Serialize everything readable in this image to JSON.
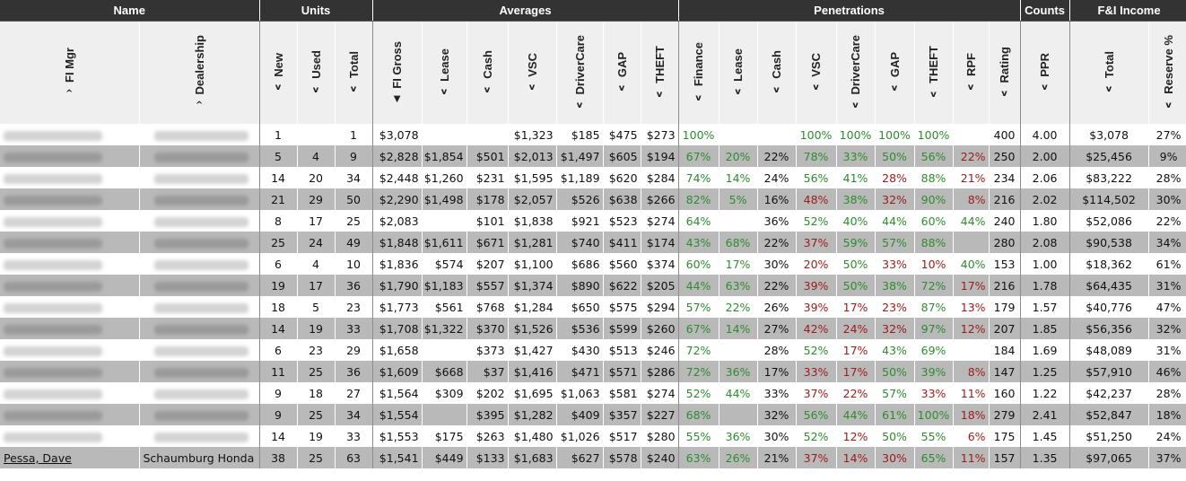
{
  "groups": {
    "name": "Name",
    "units": "Units",
    "averages": "Averages",
    "penetrations": "Penetrations",
    "counts": "Counts",
    "fi_income": "F&I Income"
  },
  "columns": {
    "fi_mgr": "FI Mgr",
    "dealership": "Dealership",
    "new": "New",
    "used": "Used",
    "total_units": "Total",
    "fi_gross": "FI Gross",
    "lease": "Lease",
    "cash": "Cash",
    "vsc": "VSC",
    "drivercare": "DriverCare",
    "gap": "GAP",
    "theft": "THEFT",
    "p_finance": "Finance",
    "p_lease": "Lease",
    "p_cash": "Cash",
    "p_vsc": "VSC",
    "p_drivercare": "DriverCare",
    "p_gap": "GAP",
    "p_theft": "THEFT",
    "p_rpf": "RPF",
    "p_rating": "Rating",
    "ppr": "PPR",
    "total_income": "Total",
    "reserve": "Reserve %"
  },
  "arrows": {
    "asc": "^",
    "desc": "v",
    "active": "▼"
  },
  "colors": {
    "good": "#2e8b2e",
    "bad": "#9b1a1a",
    "header_bg": "#333333",
    "row_alt": "#b9b9b9"
  },
  "last_row_partial": {
    "fi_mgr": "Pessa, Dave",
    "dealership": "Schaumburg Honda"
  },
  "rows": [
    {
      "new": "1",
      "used": "",
      "total": "1",
      "fi_gross": "$3,078",
      "lease": "",
      "cash": "",
      "vsc": "$1,323",
      "dc": "$185",
      "gap": "$475",
      "theft": "$273",
      "pf": "100%",
      "pl": "",
      "pc": "",
      "pv": "100%",
      "pd": "100%",
      "pg": "100%",
      "pt": "100%",
      "pr": "",
      "rating": "400",
      "ppr": "4.00",
      "tot": "$3,078",
      "res": "27%"
    },
    {
      "new": "5",
      "used": "4",
      "total": "9",
      "fi_gross": "$2,828",
      "lease": "$1,854",
      "cash": "$501",
      "vsc": "$2,013",
      "dc": "$1,497",
      "gap": "$605",
      "theft": "$194",
      "pf": "67%",
      "pl": "20%",
      "pc": "22%",
      "pv": "78%",
      "pd": "33%",
      "pg": "50%",
      "pt": "56%",
      "pr": "22%",
      "rating": "250",
      "ppr": "2.00",
      "tot": "$25,456",
      "res": "9%"
    },
    {
      "new": "14",
      "used": "20",
      "total": "34",
      "fi_gross": "$2,448",
      "lease": "$1,260",
      "cash": "$231",
      "vsc": "$1,595",
      "dc": "$1,189",
      "gap": "$620",
      "theft": "$284",
      "pf": "74%",
      "pl": "14%",
      "pc": "24%",
      "pv": "56%",
      "pd": "41%",
      "pg": "28%",
      "pt": "88%",
      "pr": "21%",
      "rating": "234",
      "ppr": "2.06",
      "tot": "$83,222",
      "res": "28%"
    },
    {
      "new": "21",
      "used": "29",
      "total": "50",
      "fi_gross": "$2,290",
      "lease": "$1,498",
      "cash": "$178",
      "vsc": "$2,057",
      "dc": "$526",
      "gap": "$638",
      "theft": "$266",
      "pf": "82%",
      "pl": "5%",
      "pc": "16%",
      "pv": "48%",
      "pd": "38%",
      "pg": "32%",
      "pt": "90%",
      "pr": "8%",
      "rating": "216",
      "ppr": "2.02",
      "tot": "$114,502",
      "res": "30%"
    },
    {
      "new": "8",
      "used": "17",
      "total": "25",
      "fi_gross": "$2,083",
      "lease": "",
      "cash": "$101",
      "vsc": "$1,838",
      "dc": "$921",
      "gap": "$523",
      "theft": "$274",
      "pf": "64%",
      "pl": "",
      "pc": "36%",
      "pv": "52%",
      "pd": "40%",
      "pg": "44%",
      "pt": "60%",
      "pr": "44%",
      "rating": "240",
      "ppr": "1.80",
      "tot": "$52,086",
      "res": "22%"
    },
    {
      "new": "25",
      "used": "24",
      "total": "49",
      "fi_gross": "$1,848",
      "lease": "$1,611",
      "cash": "$671",
      "vsc": "$1,281",
      "dc": "$740",
      "gap": "$411",
      "theft": "$174",
      "pf": "43%",
      "pl": "68%",
      "pc": "22%",
      "pv": "37%",
      "pd": "59%",
      "pg": "57%",
      "pt": "88%",
      "pr": "",
      "rating": "280",
      "ppr": "2.08",
      "tot": "$90,538",
      "res": "34%"
    },
    {
      "new": "6",
      "used": "4",
      "total": "10",
      "fi_gross": "$1,836",
      "lease": "$574",
      "cash": "$207",
      "vsc": "$1,100",
      "dc": "$686",
      "gap": "$560",
      "theft": "$374",
      "pf": "60%",
      "pl": "17%",
      "pc": "30%",
      "pv": "20%",
      "pd": "50%",
      "pg": "33%",
      "pt": "10%",
      "pr": "40%",
      "rating": "153",
      "ppr": "1.00",
      "tot": "$18,362",
      "res": "61%"
    },
    {
      "new": "19",
      "used": "17",
      "total": "36",
      "fi_gross": "$1,790",
      "lease": "$1,183",
      "cash": "$557",
      "vsc": "$1,374",
      "dc": "$890",
      "gap": "$622",
      "theft": "$205",
      "pf": "44%",
      "pl": "63%",
      "pc": "22%",
      "pv": "39%",
      "pd": "50%",
      "pg": "38%",
      "pt": "72%",
      "pr": "17%",
      "rating": "216",
      "ppr": "1.78",
      "tot": "$64,435",
      "res": "31%"
    },
    {
      "new": "18",
      "used": "5",
      "total": "23",
      "fi_gross": "$1,773",
      "lease": "$561",
      "cash": "$768",
      "vsc": "$1,284",
      "dc": "$650",
      "gap": "$575",
      "theft": "$294",
      "pf": "57%",
      "pl": "22%",
      "pc": "26%",
      "pv": "39%",
      "pd": "17%",
      "pg": "23%",
      "pt": "87%",
      "pr": "13%",
      "rating": "179",
      "ppr": "1.57",
      "tot": "$40,776",
      "res": "47%"
    },
    {
      "new": "14",
      "used": "19",
      "total": "33",
      "fi_gross": "$1,708",
      "lease": "$1,322",
      "cash": "$370",
      "vsc": "$1,526",
      "dc": "$536",
      "gap": "$599",
      "theft": "$260",
      "pf": "67%",
      "pl": "14%",
      "pc": "27%",
      "pv": "42%",
      "pd": "24%",
      "pg": "32%",
      "pt": "97%",
      "pr": "12%",
      "rating": "207",
      "ppr": "1.85",
      "tot": "$56,356",
      "res": "32%"
    },
    {
      "new": "6",
      "used": "23",
      "total": "29",
      "fi_gross": "$1,658",
      "lease": "",
      "cash": "$373",
      "vsc": "$1,427",
      "dc": "$430",
      "gap": "$513",
      "theft": "$246",
      "pf": "72%",
      "pl": "",
      "pc": "28%",
      "pv": "52%",
      "pd": "17%",
      "pg": "43%",
      "pt": "69%",
      "pr": "",
      "rating": "184",
      "ppr": "1.69",
      "tot": "$48,089",
      "res": "31%"
    },
    {
      "new": "11",
      "used": "25",
      "total": "36",
      "fi_gross": "$1,609",
      "lease": "$668",
      "cash": "$37",
      "vsc": "$1,416",
      "dc": "$471",
      "gap": "$571",
      "theft": "$286",
      "pf": "72%",
      "pl": "36%",
      "pc": "17%",
      "pv": "33%",
      "pd": "17%",
      "pg": "50%",
      "pt": "39%",
      "pr": "8%",
      "rating": "147",
      "ppr": "1.25",
      "tot": "$57,910",
      "res": "46%"
    },
    {
      "new": "9",
      "used": "18",
      "total": "27",
      "fi_gross": "$1,564",
      "lease": "$309",
      "cash": "$202",
      "vsc": "$1,695",
      "dc": "$1,063",
      "gap": "$581",
      "theft": "$274",
      "pf": "52%",
      "pl": "44%",
      "pc": "33%",
      "pv": "37%",
      "pd": "22%",
      "pg": "57%",
      "pt": "33%",
      "pr": "11%",
      "rating": "160",
      "ppr": "1.22",
      "tot": "$42,237",
      "res": "28%"
    },
    {
      "new": "9",
      "used": "25",
      "total": "34",
      "fi_gross": "$1,554",
      "lease": "",
      "cash": "$395",
      "vsc": "$1,282",
      "dc": "$409",
      "gap": "$357",
      "theft": "$227",
      "pf": "68%",
      "pl": "",
      "pc": "32%",
      "pv": "56%",
      "pd": "44%",
      "pg": "61%",
      "pt": "100%",
      "pr": "18%",
      "rating": "279",
      "ppr": "2.41",
      "tot": "$52,847",
      "res": "18%"
    },
    {
      "new": "14",
      "used": "19",
      "total": "33",
      "fi_gross": "$1,553",
      "lease": "$175",
      "cash": "$263",
      "vsc": "$1,480",
      "dc": "$1,026",
      "gap": "$517",
      "theft": "$280",
      "pf": "55%",
      "pl": "36%",
      "pc": "30%",
      "pv": "52%",
      "pd": "12%",
      "pg": "50%",
      "pt": "55%",
      "pr": "6%",
      "rating": "175",
      "ppr": "1.45",
      "tot": "$51,250",
      "res": "24%"
    },
    {
      "new": "38",
      "used": "25",
      "total": "63",
      "fi_gross": "$1,541",
      "lease": "$449",
      "cash": "$133",
      "vsc": "$1,683",
      "dc": "$627",
      "gap": "$578",
      "theft": "$240",
      "pf": "63%",
      "pl": "26%",
      "pc": "21%",
      "pv": "37%",
      "pd": "14%",
      "pg": "30%",
      "pt": "65%",
      "pr": "11%",
      "rating": "157",
      "ppr": "1.35",
      "tot": "$97,065",
      "res": "37%"
    }
  ],
  "penetration_color": [
    {
      "pf": "grn",
      "pl": "grn",
      "pc": "",
      "pv": "grn",
      "pd": "grn",
      "pg": "grn",
      "pt": "grn",
      "pr": ""
    },
    {
      "pf": "grn",
      "pl": "grn",
      "pc": "",
      "pv": "grn",
      "pd": "grn",
      "pg": "grn",
      "pt": "grn",
      "pr": "red"
    },
    {
      "pf": "grn",
      "pl": "grn",
      "pc": "",
      "pv": "grn",
      "pd": "grn",
      "pg": "red",
      "pt": "grn",
      "pr": "red"
    },
    {
      "pf": "grn",
      "pl": "grn",
      "pc": "",
      "pv": "red",
      "pd": "grn",
      "pg": "red",
      "pt": "grn",
      "pr": "red"
    },
    {
      "pf": "grn",
      "pl": "",
      "pc": "",
      "pv": "grn",
      "pd": "grn",
      "pg": "grn",
      "pt": "grn",
      "pr": "grn"
    },
    {
      "pf": "grn",
      "pl": "grn",
      "pc": "",
      "pv": "red",
      "pd": "grn",
      "pg": "grn",
      "pt": "grn",
      "pr": ""
    },
    {
      "pf": "grn",
      "pl": "grn",
      "pc": "",
      "pv": "red",
      "pd": "grn",
      "pg": "red",
      "pt": "red",
      "pr": "grn"
    },
    {
      "pf": "grn",
      "pl": "grn",
      "pc": "",
      "pv": "red",
      "pd": "grn",
      "pg": "grn",
      "pt": "grn",
      "pr": "red"
    },
    {
      "pf": "grn",
      "pl": "grn",
      "pc": "",
      "pv": "red",
      "pd": "red",
      "pg": "red",
      "pt": "grn",
      "pr": "red"
    },
    {
      "pf": "grn",
      "pl": "grn",
      "pc": "",
      "pv": "red",
      "pd": "red",
      "pg": "red",
      "pt": "grn",
      "pr": "red"
    },
    {
      "pf": "grn",
      "pl": "",
      "pc": "",
      "pv": "grn",
      "pd": "red",
      "pg": "grn",
      "pt": "grn",
      "pr": ""
    },
    {
      "pf": "grn",
      "pl": "grn",
      "pc": "",
      "pv": "red",
      "pd": "red",
      "pg": "grn",
      "pt": "grn",
      "pr": "red"
    },
    {
      "pf": "grn",
      "pl": "grn",
      "pc": "",
      "pv": "red",
      "pd": "red",
      "pg": "grn",
      "pt": "red",
      "pr": "red"
    },
    {
      "pf": "grn",
      "pl": "",
      "pc": "",
      "pv": "grn",
      "pd": "grn",
      "pg": "grn",
      "pt": "grn",
      "pr": "red"
    },
    {
      "pf": "grn",
      "pl": "grn",
      "pc": "",
      "pv": "grn",
      "pd": "red",
      "pg": "grn",
      "pt": "grn",
      "pr": "red"
    },
    {
      "pf": "grn",
      "pl": "grn",
      "pc": "",
      "pv": "red",
      "pd": "red",
      "pg": "red",
      "pt": "grn",
      "pr": "red"
    }
  ]
}
